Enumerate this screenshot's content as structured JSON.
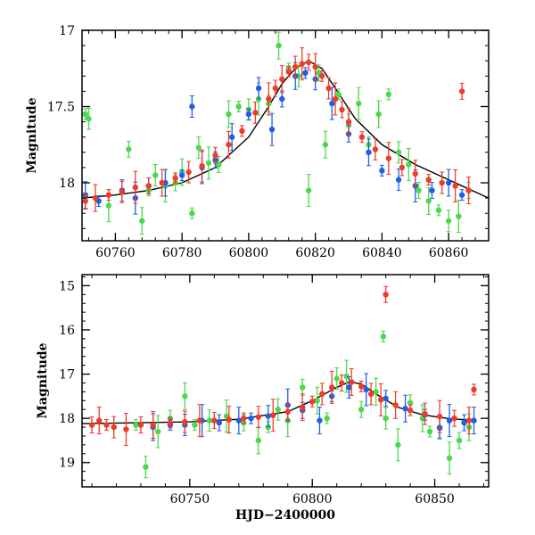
{
  "chart_data": [
    {
      "type": "scatter",
      "xlabel": "",
      "ylabel": "Magnitude",
      "xlim": [
        60750,
        60872
      ],
      "ylim": [
        18.38,
        17.0
      ],
      "y_inverted": true,
      "xticks": [
        60760,
        60780,
        60800,
        60820,
        60840,
        60860
      ],
      "yticks": [
        17,
        17.5,
        18
      ],
      "grid": false,
      "series": [
        {
          "color": "#4cd84c",
          "x": [
            60751,
            60752,
            60758,
            60764,
            60768,
            60770,
            60772,
            60775,
            60778,
            60780,
            60783,
            60785,
            60788,
            60791,
            60794,
            60797,
            60800,
            60803,
            60806,
            60809,
            60812,
            60815,
            60818,
            60821,
            60823,
            60827,
            60830,
            60833,
            60836,
            60839,
            60842,
            60845,
            60848,
            60851,
            60854,
            60857,
            60860,
            60863,
            60866
          ],
          "y": [
            17.55,
            17.58,
            18.15,
            17.78,
            18.25,
            18.05,
            17.95,
            18.02,
            18.0,
            17.93,
            18.2,
            17.77,
            17.87,
            17.88,
            17.55,
            17.5,
            17.52,
            17.45,
            17.48,
            17.1,
            17.25,
            17.3,
            18.05,
            17.28,
            17.75,
            17.42,
            17.62,
            17.48,
            17.75,
            17.55,
            17.42,
            17.8,
            17.88,
            18.05,
            18.12,
            18.18,
            18.25,
            18.22,
            18.05
          ]
        },
        {
          "color": "#1f5fe6",
          "x": [
            60751,
            60755,
            60762,
            60766,
            60770,
            60775,
            60780,
            60783,
            60786,
            60790,
            60795,
            60800,
            60803,
            60807,
            60810,
            60814,
            60817,
            60820,
            60825,
            60830,
            60836,
            60840,
            60845,
            60850,
            60855,
            60860,
            60864
          ],
          "y": [
            18.08,
            18.12,
            18.05,
            18.1,
            18.02,
            18.0,
            17.95,
            17.5,
            17.9,
            17.85,
            17.7,
            17.55,
            17.38,
            17.65,
            17.45,
            17.3,
            17.28,
            17.32,
            17.48,
            17.68,
            17.8,
            17.92,
            17.98,
            18.02,
            18.05,
            18.0,
            18.08
          ]
        },
        {
          "color": "#ee3b2a",
          "x": [
            60751,
            60754,
            60758,
            60762,
            60766,
            60770,
            60774,
            60778,
            60782,
            60786,
            60790,
            60794,
            60798,
            60802,
            60806,
            60808,
            60810,
            60812,
            60814,
            60816,
            60818,
            60820,
            60822,
            60824,
            60826,
            60828,
            60830,
            60834,
            60838,
            60842,
            60846,
            60850,
            60854,
            60858,
            60862,
            60864,
            60866
          ],
          "y": [
            18.12,
            18.1,
            18.08,
            18.06,
            18.03,
            18.02,
            18.0,
            17.97,
            17.93,
            17.89,
            17.82,
            17.75,
            17.66,
            17.54,
            17.45,
            17.38,
            17.32,
            17.27,
            17.24,
            17.22,
            17.21,
            17.24,
            17.3,
            17.38,
            17.45,
            17.52,
            17.6,
            17.7,
            17.78,
            17.84,
            17.9,
            17.94,
            17.98,
            18.0,
            18.02,
            17.4,
            18.05
          ]
        }
      ],
      "model_line": {
        "color": "#000000",
        "x": [
          60750,
          60760,
          60770,
          60780,
          60790,
          60800,
          60806,
          60810,
          60814,
          60818,
          60822,
          60826,
          60832,
          60840,
          60850,
          60860,
          60872
        ],
        "y": [
          18.1,
          18.08,
          18.05,
          18.0,
          17.9,
          17.7,
          17.5,
          17.35,
          17.25,
          17.2,
          17.25,
          17.38,
          17.58,
          17.75,
          17.88,
          17.98,
          18.1
        ]
      }
    },
    {
      "type": "scatter",
      "xlabel": "HJD−2400000",
      "ylabel": "Magnitude",
      "xlim": [
        60706,
        60872
      ],
      "ylim": [
        19.55,
        14.75
      ],
      "y_inverted": true,
      "xticks": [
        60750,
        60800,
        60850
      ],
      "yticks": [
        15,
        16,
        17,
        18,
        19
      ],
      "grid": false,
      "series": [
        {
          "color": "#4cd84c",
          "x": [
            60728,
            60732,
            60737,
            60742,
            60748,
            60752,
            60758,
            60765,
            60772,
            60778,
            60782,
            60786,
            60790,
            60796,
            60802,
            60806,
            60810,
            60814,
            60820,
            60826,
            60829,
            60830,
            60835,
            60840,
            60845,
            60848,
            60852,
            60856,
            60860,
            60864
          ],
          "y": [
            18.15,
            19.1,
            18.3,
            18.0,
            17.5,
            18.15,
            18.05,
            17.95,
            18.1,
            18.5,
            18.2,
            17.8,
            18.05,
            17.3,
            17.6,
            18.0,
            17.1,
            17.05,
            17.8,
            17.4,
            16.15,
            18.0,
            18.6,
            17.65,
            18.0,
            18.3,
            18.2,
            18.9,
            18.5,
            18.2
          ]
        },
        {
          "color": "#1f5fe6",
          "x": [
            60735,
            60742,
            60748,
            60755,
            60762,
            60770,
            60775,
            60782,
            60790,
            60796,
            60803,
            60808,
            60815,
            60822,
            60830,
            60838,
            60846,
            60852,
            60856,
            60862,
            60866
          ],
          "y": [
            18.2,
            18.15,
            18.15,
            18.05,
            18.1,
            18.05,
            18.0,
            17.95,
            17.7,
            17.82,
            18.05,
            17.5,
            17.3,
            17.35,
            17.55,
            17.78,
            17.92,
            18.22,
            18.05,
            18.1,
            18.05
          ]
        },
        {
          "color": "#ee3b2a",
          "x": [
            60710,
            60713,
            60716,
            60719,
            60724,
            60730,
            60735,
            60742,
            60748,
            60754,
            60760,
            60766,
            60772,
            60778,
            60784,
            60790,
            60796,
            60800,
            60804,
            60808,
            60812,
            60816,
            60820,
            60824,
            60828,
            60830,
            60834,
            60840,
            60846,
            60852,
            60858,
            60864,
            60866
          ],
          "y": [
            18.15,
            18.05,
            18.15,
            18.2,
            18.25,
            18.15,
            18.15,
            18.1,
            18.08,
            18.05,
            18.05,
            18.03,
            18.0,
            17.97,
            17.93,
            17.85,
            17.75,
            17.62,
            17.45,
            17.3,
            17.2,
            17.18,
            17.28,
            17.45,
            17.58,
            15.2,
            17.7,
            17.82,
            17.9,
            17.96,
            18.0,
            18.05,
            17.35
          ]
        }
      ],
      "model_line": {
        "color": "#000000",
        "x": [
          60706,
          60730,
          60750,
          60770,
          60790,
          60800,
          60810,
          60815,
          60820,
          60826,
          60835,
          60845,
          60855,
          60866
        ],
        "y": [
          18.12,
          18.1,
          18.08,
          18.02,
          17.85,
          17.6,
          17.3,
          17.18,
          17.22,
          17.45,
          17.75,
          17.92,
          18.0,
          18.05
        ]
      }
    }
  ]
}
